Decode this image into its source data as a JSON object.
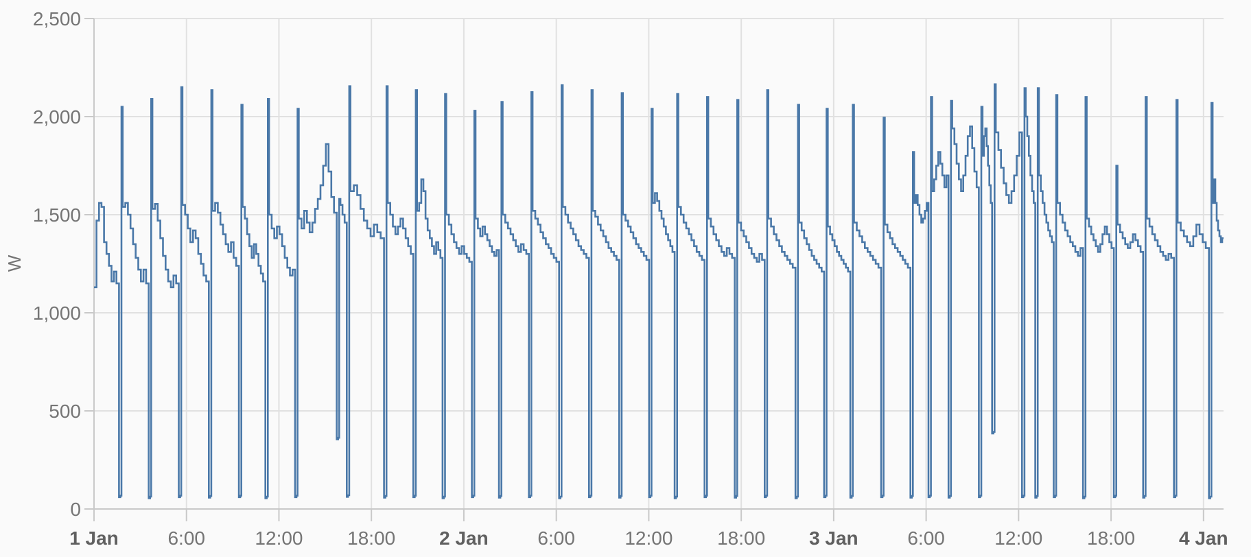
{
  "chart": {
    "y_axis_title": "W",
    "x_ticks": [
      {
        "h": 0,
        "label": "1 Jan",
        "bold": true
      },
      {
        "h": 6,
        "label": "6:00",
        "bold": false
      },
      {
        "h": 12,
        "label": "12:00",
        "bold": false
      },
      {
        "h": 18,
        "label": "18:00",
        "bold": false
      },
      {
        "h": 24,
        "label": "2 Jan",
        "bold": true
      },
      {
        "h": 30,
        "label": "6:00",
        "bold": false
      },
      {
        "h": 36,
        "label": "12:00",
        "bold": false
      },
      {
        "h": 42,
        "label": "18:00",
        "bold": false
      },
      {
        "h": 48,
        "label": "3 Jan",
        "bold": true
      },
      {
        "h": 54,
        "label": "6:00",
        "bold": false
      },
      {
        "h": 60,
        "label": "12:00",
        "bold": false
      },
      {
        "h": 66,
        "label": "18:00",
        "bold": false
      },
      {
        "h": 72,
        "label": "4 Jan",
        "bold": true
      }
    ],
    "y_ticks": [
      {
        "v": 0,
        "label": "0"
      },
      {
        "v": 500,
        "label": "500"
      },
      {
        "v": 1000,
        "label": "1,000"
      },
      {
        "v": 1500,
        "label": "1,500"
      },
      {
        "v": 2000,
        "label": "2,000"
      },
      {
        "v": 2500,
        "label": "2,500"
      }
    ],
    "colors": {
      "line": "#4a78a8",
      "grid": "#e1e1e1",
      "axis": "#c9c9c9",
      "tick_label": "#757575",
      "date_label": "#606060",
      "background": "#fafafa"
    }
  },
  "chart_data": {
    "type": "line",
    "step": true,
    "title": "",
    "xlabel": "",
    "ylabel": "W",
    "legend": "none",
    "grid": true,
    "x_unit": "hours since 1 Jan 00:00",
    "x_range": [
      0,
      73.3
    ],
    "y_range": [
      0,
      2500
    ],
    "description": "Stepped power consumption trace: baseline 1150-1600 W, a dip to ~60 W roughly every 2 h immediately followed by a spike to ~2030-2165 W; two partial dips only reach ~355-385 W; elevated noisy baseline (mountains to ~1950 W) on 1 Jan 14:00-16:00 and 3 Jan 06:00-13:30.",
    "lead_in": {
      "start_h": 0.0,
      "levels": [
        1130,
        1470,
        1560,
        1540,
        1360,
        1300,
        1240,
        1160,
        1210,
        1150
      ]
    },
    "dip_duration_h": 0.16,
    "spike_duration_h": 0.08,
    "cycles": [
      {
        "t": 1.62,
        "dip": 60,
        "peak": 2050,
        "base": [
          1540,
          1560,
          1500,
          1430,
          1350,
          1280,
          1220,
          1160,
          1220,
          1150
        ]
      },
      {
        "t": 3.55,
        "dip": 55,
        "peak": 2090,
        "base": [
          1530,
          1555,
          1470,
          1380,
          1290,
          1220,
          1160,
          1130,
          1190,
          1150
        ]
      },
      {
        "t": 5.5,
        "dip": 60,
        "peak": 2150,
        "base": [
          1550,
          1500,
          1430,
          1360,
          1420,
          1380,
          1300,
          1250,
          1190,
          1160
        ]
      },
      {
        "t": 7.45,
        "dip": 58,
        "peak": 2135,
        "base": [
          1520,
          1560,
          1510,
          1450,
          1400,
          1350,
          1310,
          1360,
          1280,
          1240
        ]
      },
      {
        "t": 9.4,
        "dip": 60,
        "peak": 2060,
        "base": [
          1540,
          1480,
          1400,
          1340,
          1280,
          1350,
          1300,
          1240,
          1200,
          1160
        ]
      },
      {
        "t": 11.12,
        "dip": 55,
        "peak": 2090,
        "base": [
          1500,
          1430,
          1380,
          1440,
          1400,
          1340,
          1280,
          1230,
          1190,
          1220
        ]
      },
      {
        "t": 13.05,
        "dip": 60,
        "peak": 2040,
        "base": [
          1480,
          1430,
          1520,
          1460,
          1410,
          1460,
          1530,
          1580,
          1650,
          1750,
          1860,
          1720,
          1590,
          1510
        ]
      },
      {
        "t": 15.75,
        "dip": 355,
        "peak": 1580,
        "base": [
          1550,
          1500,
          1460
        ]
      },
      {
        "t": 16.4,
        "dip": 62,
        "peak": 2155,
        "base": [
          1620,
          1650,
          1600,
          1530,
          1470,
          1430,
          1390,
          1450,
          1410,
          1380
        ]
      },
      {
        "t": 18.82,
        "dip": 58,
        "peak": 2155,
        "base": [
          1560,
          1500,
          1440,
          1400,
          1440,
          1480,
          1430,
          1380,
          1340,
          1300
        ]
      },
      {
        "t": 20.72,
        "dip": 60,
        "peak": 2135,
        "base": [
          1520,
          1560,
          1680,
          1620,
          1480,
          1420,
          1380,
          1340,
          1300,
          1360,
          1320,
          1280
        ]
      },
      {
        "t": 22.62,
        "dip": 55,
        "peak": 2115,
        "base": [
          1500,
          1450,
          1400,
          1360,
          1330,
          1300,
          1340,
          1300,
          1280,
          1260
        ]
      },
      {
        "t": 24.52,
        "dip": 60,
        "peak": 2030,
        "base": [
          1480,
          1430,
          1390,
          1440,
          1400,
          1370,
          1340,
          1310,
          1290,
          1320
        ]
      },
      {
        "t": 26.28,
        "dip": 58,
        "peak": 2075,
        "base": [
          1500,
          1460,
          1430,
          1400,
          1370,
          1340,
          1310,
          1350,
          1320,
          1300
        ]
      },
      {
        "t": 28.22,
        "dip": 60,
        "peak": 2125,
        "base": [
          1520,
          1480,
          1450,
          1410,
          1380,
          1350,
          1330,
          1300,
          1280,
          1260
        ]
      },
      {
        "t": 30.18,
        "dip": 55,
        "peak": 2160,
        "base": [
          1540,
          1500,
          1460,
          1430,
          1400,
          1370,
          1340,
          1320,
          1300,
          1280
        ]
      },
      {
        "t": 32.12,
        "dip": 60,
        "peak": 2135,
        "base": [
          1520,
          1490,
          1450,
          1420,
          1390,
          1360,
          1330,
          1310,
          1290,
          1270
        ]
      },
      {
        "t": 34.08,
        "dip": 58,
        "peak": 2120,
        "base": [
          1500,
          1470,
          1440,
          1410,
          1380,
          1350,
          1330,
          1310,
          1290,
          1270
        ]
      },
      {
        "t": 36.02,
        "dip": 60,
        "peak": 2040,
        "base": [
          1560,
          1610,
          1570,
          1520,
          1480,
          1440,
          1400,
          1370,
          1340,
          1310
        ]
      },
      {
        "t": 37.68,
        "dip": 55,
        "peak": 2115,
        "base": [
          1540,
          1500,
          1460,
          1430,
          1400,
          1370,
          1340,
          1310,
          1290,
          1270
        ]
      },
      {
        "t": 39.62,
        "dip": 60,
        "peak": 2100,
        "base": [
          1480,
          1440,
          1400,
          1370,
          1340,
          1310,
          1290,
          1330,
          1300,
          1280
        ]
      },
      {
        "t": 41.58,
        "dip": 58,
        "peak": 2085,
        "base": [
          1460,
          1420,
          1390,
          1360,
          1330,
          1300,
          1280,
          1260,
          1300,
          1270
        ]
      },
      {
        "t": 43.52,
        "dip": 60,
        "peak": 2135,
        "base": [
          1480,
          1440,
          1400,
          1370,
          1340,
          1310,
          1290,
          1270,
          1250,
          1230
        ]
      },
      {
        "t": 45.52,
        "dip": 55,
        "peak": 2060,
        "base": [
          1460,
          1420,
          1380,
          1350,
          1320,
          1290,
          1270,
          1250,
          1230,
          1210
        ]
      },
      {
        "t": 47.38,
        "dip": 60,
        "peak": 2040,
        "base": [
          1440,
          1400,
          1370,
          1340,
          1310,
          1290,
          1270,
          1250,
          1230,
          1210
        ]
      },
      {
        "t": 49.08,
        "dip": 58,
        "peak": 2060,
        "base": [
          1460,
          1420,
          1390,
          1360,
          1330,
          1310,
          1290,
          1270,
          1250,
          1230
        ]
      },
      {
        "t": 51.08,
        "dip": 60,
        "peak": 1995,
        "base": [
          1450,
          1410,
          1380,
          1350,
          1330,
          1310,
          1290,
          1270,
          1250,
          1230
        ]
      },
      {
        "t": 52.98,
        "dip": 58,
        "peak": 1820,
        "base": [
          1560,
          1600,
          1550,
          1500,
          1460,
          1480,
          1520,
          1560
        ]
      },
      {
        "t": 54.15,
        "dip": 60,
        "peak": 2100,
        "base": [
          1620,
          1680,
          1750,
          1820,
          1760,
          1700,
          1640,
          1700
        ]
      },
      {
        "t": 55.45,
        "dip": 58,
        "peak": 2080,
        "base": [
          1940,
          1860,
          1760,
          1680,
          1620,
          1700,
          1800,
          1900,
          1950,
          1840,
          1720,
          1640
        ]
      },
      {
        "t": 57.42,
        "dip": 60,
        "peak": 2050,
        "base": [
          1800,
          1900,
          1940,
          1850,
          1750,
          1650,
          1560
        ]
      },
      {
        "t": 58.28,
        "dip": 385,
        "peak": 2165,
        "base": [
          1920,
          1830,
          1740,
          1660,
          1600,
          1560,
          1620,
          1700,
          1800,
          1920
        ]
      },
      {
        "t": 60.22,
        "dip": 60,
        "peak": 2145,
        "base": [
          2000,
          1900,
          1800,
          1700,
          1620,
          1560
        ]
      },
      {
        "t": 61.08,
        "dip": 58,
        "peak": 2145,
        "base": [
          1700,
          1620,
          1560,
          1500,
          1460,
          1420,
          1390,
          1360
        ]
      },
      {
        "t": 62.28,
        "dip": 60,
        "peak": 2110,
        "base": [
          1560,
          1500,
          1460,
          1420,
          1390,
          1360,
          1340,
          1310,
          1290,
          1330
        ]
      },
      {
        "t": 64.18,
        "dip": 55,
        "peak": 2100,
        "base": [
          1480,
          1440,
          1400,
          1370,
          1340,
          1310,
          1350,
          1400,
          1440,
          1400,
          1360,
          1330
        ]
      },
      {
        "t": 66.18,
        "dip": 60,
        "peak": 1750,
        "base": [
          1450,
          1410,
          1380,
          1350,
          1330,
          1360,
          1400,
          1370,
          1340,
          1310
        ]
      },
      {
        "t": 68.08,
        "dip": 58,
        "peak": 2100,
        "base": [
          1480,
          1440,
          1400,
          1370,
          1340,
          1310,
          1290,
          1270,
          1300,
          1280
        ]
      },
      {
        "t": 70.08,
        "dip": 60,
        "peak": 2085,
        "base": [
          1460,
          1420,
          1390,
          1360,
          1340,
          1390,
          1450,
          1400,
          1360,
          1330
        ]
      },
      {
        "t": 72.35,
        "dip": 55,
        "peak": 2070,
        "base": [
          1560,
          1680,
          1560,
          1470,
          1420,
          1390,
          1360,
          1380
        ]
      }
    ]
  }
}
